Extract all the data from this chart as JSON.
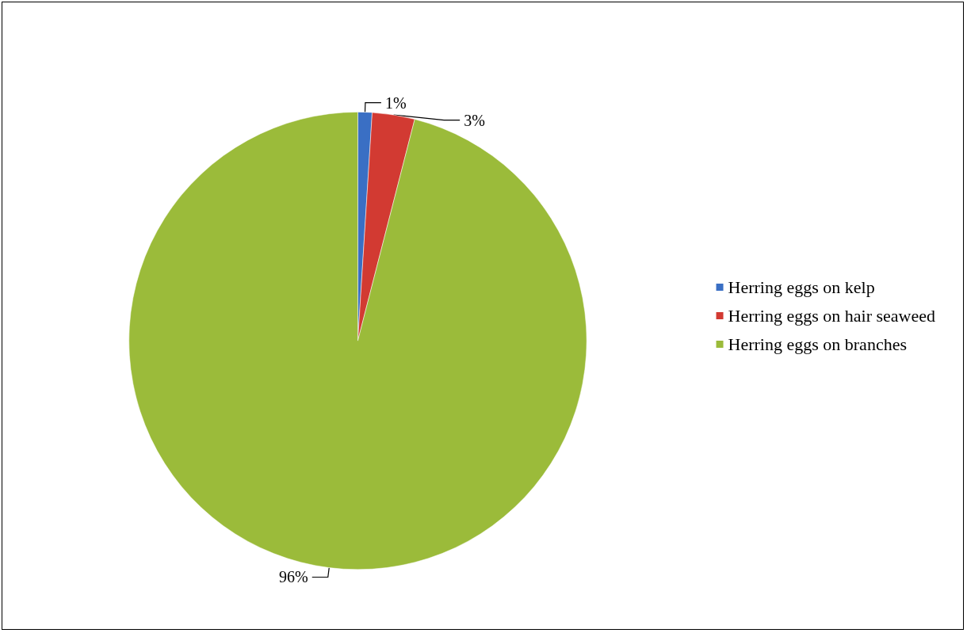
{
  "chart_data": {
    "type": "pie",
    "categories": [
      "Herring eggs on kelp",
      "Herring eggs on hair seaweed",
      "Herring eggs on branches"
    ],
    "values": [
      1,
      3,
      96
    ],
    "value_labels": [
      "1%",
      "3%",
      "96%"
    ],
    "colors": [
      "#3a6fc4",
      "#d23a32",
      "#9bbb3a"
    ],
    "legend": "right"
  }
}
